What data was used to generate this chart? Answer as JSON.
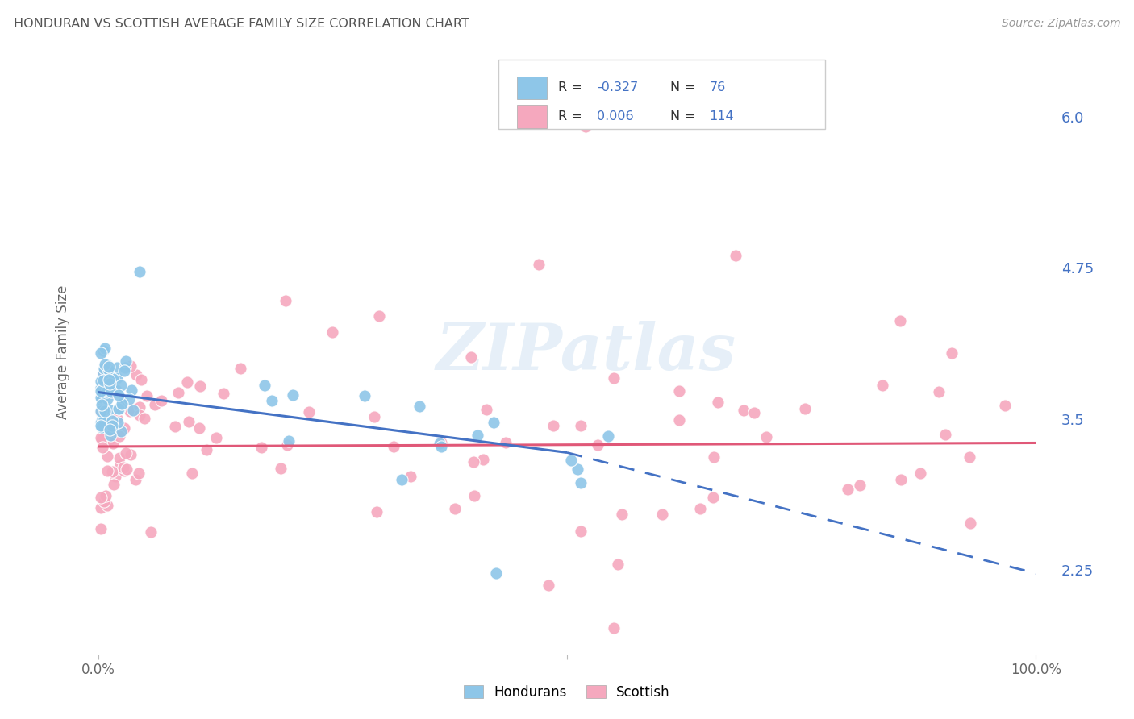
{
  "title": "HONDURAN VS SCOTTISH AVERAGE FAMILY SIZE CORRELATION CHART",
  "source": "Source: ZipAtlas.com",
  "ylabel": "Average Family Size",
  "yticks": [
    2.25,
    3.5,
    4.75,
    6.0
  ],
  "ylim": [
    1.55,
    6.55
  ],
  "xlim": [
    -0.02,
    1.02
  ],
  "honduran_color": "#8ec6e8",
  "scottish_color": "#f5a8be",
  "honduran_R": -0.327,
  "honduran_N": 76,
  "scottish_R": 0.006,
  "scottish_N": 114,
  "legend_label_honduran": "Hondurans",
  "legend_label_scottish": "Scottish",
  "watermark": "ZIPatlas",
  "background_color": "#ffffff",
  "grid_color": "#cccccc",
  "title_color": "#555555",
  "honduran_trend_color": "#4472c4",
  "scottish_trend_color": "#e05878",
  "trend_hon_x0": 0.0,
  "trend_hon_y0": 3.72,
  "trend_hon_x1": 0.5,
  "trend_hon_y1": 3.22,
  "trend_hon_dash_x0": 0.5,
  "trend_hon_dash_y0": 3.22,
  "trend_hon_dash_x1": 1.0,
  "trend_hon_dash_y1": 2.22,
  "trend_sco_x0": 0.0,
  "trend_sco_y0": 3.27,
  "trend_sco_x1": 1.0,
  "trend_sco_y1": 3.3,
  "tick_label_color": "#4472c4",
  "axis_label_color": "#666666",
  "legend_R_color": "#333333",
  "legend_val_color": "#4472c4"
}
